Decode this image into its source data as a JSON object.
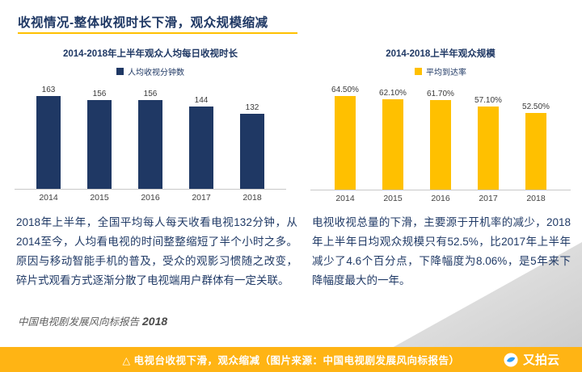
{
  "slide": {
    "title": "收视情况-整体收视时长下滑，观众规模缩减"
  },
  "theme": {
    "navy": "#1f3864",
    "accent_yellow": "#ffc000",
    "banner_gold": "#ffb414"
  },
  "chart_data": [
    {
      "type": "bar",
      "title": "2014-2018年上半年观众人均每日收视时长",
      "legend": "人均收视分钟数",
      "categories": [
        "2014",
        "2015",
        "2016",
        "2017",
        "2018"
      ],
      "values": [
        163,
        156,
        156,
        144,
        132
      ],
      "value_labels": [
        "163",
        "156",
        "156",
        "144",
        "132"
      ],
      "xlabel": "",
      "ylabel": "",
      "ylim": [
        0,
        170
      ],
      "grid": false,
      "legend_position": "top",
      "bar_color": "#1f3864"
    },
    {
      "type": "bar",
      "title": "2014-2018上半年观众规模",
      "legend": "平均到达率",
      "categories": [
        "2014",
        "2015",
        "2016",
        "2017",
        "2018"
      ],
      "values": [
        64.5,
        62.1,
        61.7,
        57.1,
        52.5
      ],
      "value_labels": [
        "64.50%",
        "62.10%",
        "61.70%",
        "57.10%",
        "52.50%"
      ],
      "xlabel": "",
      "ylabel": "",
      "ylim": [
        0,
        70
      ],
      "grid": false,
      "legend_position": "top",
      "bar_color": "#ffc000"
    }
  ],
  "paragraphs": {
    "left": "2018年上半年，全国平均每人每天收看电视132分钟，从2014至今，人均看电视的时间整整缩短了半个小时之多。原因与移动智能手机的普及，受众的观影习惯随之改变，碎片式观看方式逐渐分散了电视端用户群体有一定关联。",
    "right": "电视收视总量的下滑，主要源于开机率的减少，2018年上半年日均观众规模只有52.5%，比2017年上半年减少了4.6个百分点，下降幅度为8.06%，是5年来下降幅度最大的一年。",
    "source": "中国电视剧发展风向标报告",
    "source_year": "2018"
  },
  "footer": {
    "caption": "△ 电视台收视下滑，观众缩减（图片来源：中国电视剧发展风向标报告）",
    "brand": "又拍云"
  }
}
